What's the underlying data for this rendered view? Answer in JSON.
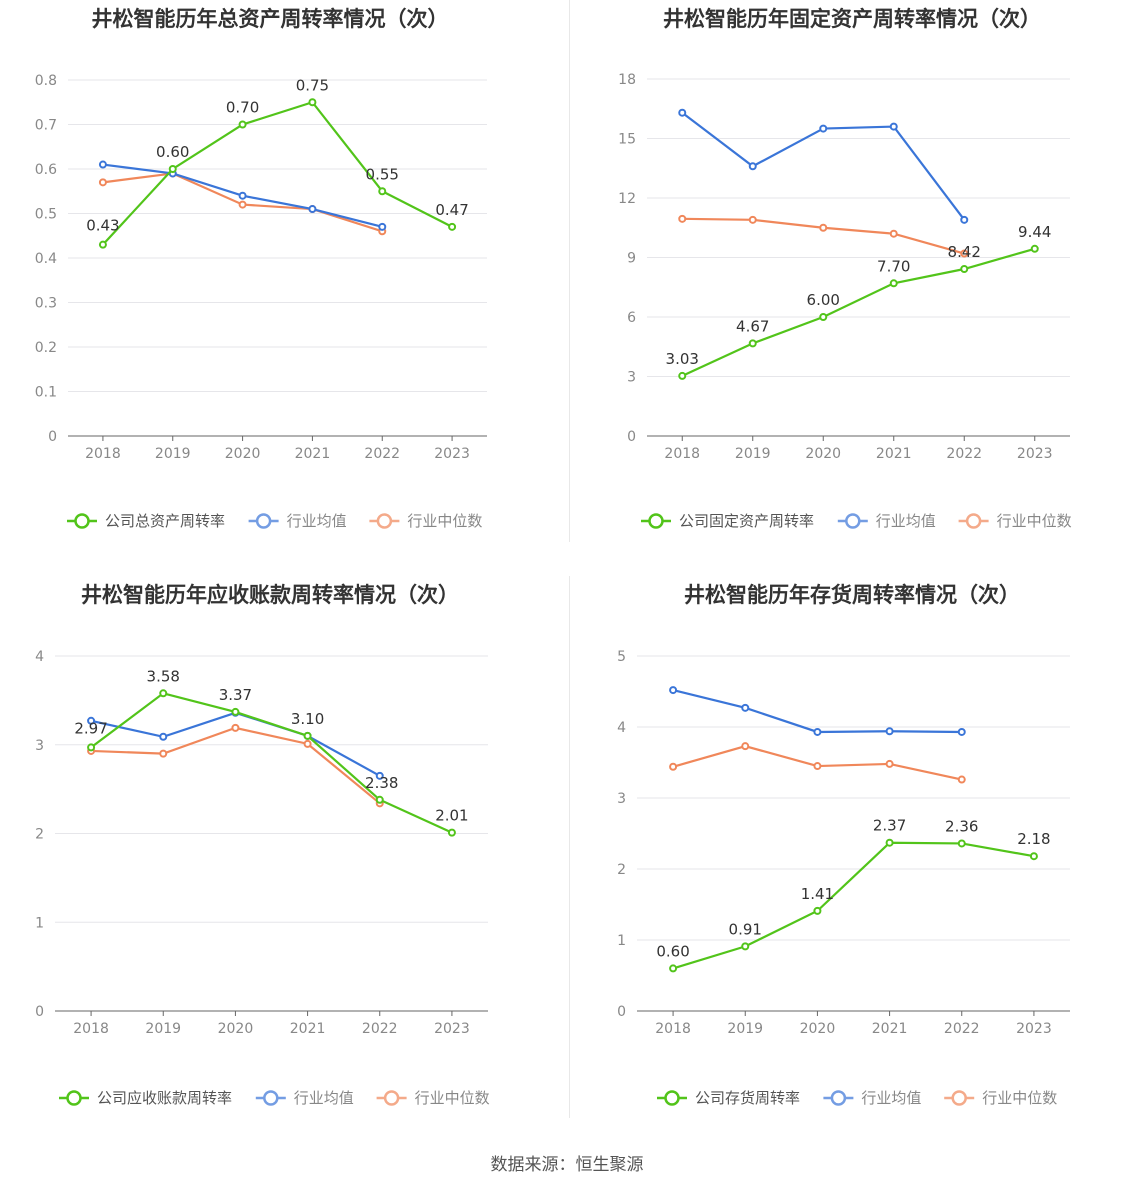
{
  "colors": {
    "company": "#52c41a",
    "avg": "#3a75d8",
    "median": "#f0875a"
  },
  "footer": "数据来源：恒生聚源",
  "chart_data": [
    {
      "type": "line",
      "title": "井松智能历年总资产周转率情况（次）",
      "categories": [
        "2018",
        "2019",
        "2020",
        "2021",
        "2022",
        "2023"
      ],
      "ylim": [
        0,
        0.8
      ],
      "yticks": [
        "0",
        "0.1",
        "0.2",
        "0.3",
        "0.4",
        "0.5",
        "0.6",
        "0.7",
        "0.8"
      ],
      "series": [
        {
          "name": "公司总资产周转率",
          "key": "company",
          "values": [
            0.43,
            0.6,
            0.7,
            0.75,
            0.55,
            0.47
          ],
          "labels": [
            "0.43",
            "0.60",
            "0.70",
            "0.75",
            "0.55",
            "0.47"
          ]
        },
        {
          "name": "行业均值",
          "key": "avg",
          "values": [
            0.61,
            0.59,
            0.54,
            0.51,
            0.47,
            null
          ]
        },
        {
          "name": "行业中位数",
          "key": "median",
          "values": [
            0.57,
            0.59,
            0.52,
            0.51,
            0.46,
            null
          ]
        }
      ]
    },
    {
      "type": "line",
      "title": "井松智能历年固定资产周转率情况（次）",
      "categories": [
        "2018",
        "2019",
        "2020",
        "2021",
        "2022",
        "2023"
      ],
      "ylim": [
        0,
        18
      ],
      "yticks": [
        "0",
        "3",
        "6",
        "9",
        "12",
        "15",
        "18"
      ],
      "series": [
        {
          "name": "公司固定资产周转率",
          "key": "company",
          "values": [
            3.03,
            4.67,
            6.0,
            7.7,
            8.42,
            9.44
          ],
          "labels": [
            "3.03",
            "4.67",
            "6.00",
            "7.70",
            "8.42",
            "9.44"
          ]
        },
        {
          "name": "行业均值",
          "key": "avg",
          "values": [
            16.3,
            13.6,
            15.5,
            15.6,
            10.9,
            null
          ]
        },
        {
          "name": "行业中位数",
          "key": "median",
          "values": [
            10.95,
            10.9,
            10.5,
            10.2,
            9.2,
            null
          ]
        }
      ]
    },
    {
      "type": "line",
      "title": "井松智能历年应收账款周转率情况（次）",
      "categories": [
        "2018",
        "2019",
        "2020",
        "2021",
        "2022",
        "2023"
      ],
      "ylim": [
        0,
        4
      ],
      "yticks": [
        "0",
        "1",
        "2",
        "3",
        "4"
      ],
      "series": [
        {
          "name": "公司应收账款周转率",
          "key": "company",
          "values": [
            2.97,
            3.58,
            3.37,
            3.1,
            2.38,
            2.01
          ],
          "labels": [
            "2.97",
            "3.58",
            "3.37",
            "3.10",
            "2.38",
            "2.01"
          ]
        },
        {
          "name": "行业均值",
          "key": "avg",
          "values": [
            3.27,
            3.09,
            3.36,
            3.1,
            2.65,
            null
          ]
        },
        {
          "name": "行业中位数",
          "key": "median",
          "values": [
            2.93,
            2.9,
            3.19,
            3.01,
            2.34,
            null
          ]
        }
      ]
    },
    {
      "type": "line",
      "title": "井松智能历年存货周转率情况（次）",
      "categories": [
        "2018",
        "2019",
        "2020",
        "2021",
        "2022",
        "2023"
      ],
      "ylim": [
        0,
        5
      ],
      "yticks": [
        "0",
        "1",
        "2",
        "3",
        "4",
        "5"
      ],
      "series": [
        {
          "name": "公司存货周转率",
          "key": "company",
          "values": [
            0.6,
            0.91,
            1.41,
            2.37,
            2.36,
            2.18
          ],
          "labels": [
            "0.60",
            "0.91",
            "1.41",
            "2.37",
            "2.36",
            "2.18"
          ]
        },
        {
          "name": "行业均值",
          "key": "avg",
          "values": [
            4.52,
            4.27,
            3.93,
            3.94,
            3.93,
            null
          ]
        },
        {
          "name": "行业中位数",
          "key": "median",
          "values": [
            3.44,
            3.73,
            3.45,
            3.48,
            3.26,
            null
          ]
        }
      ]
    }
  ]
}
